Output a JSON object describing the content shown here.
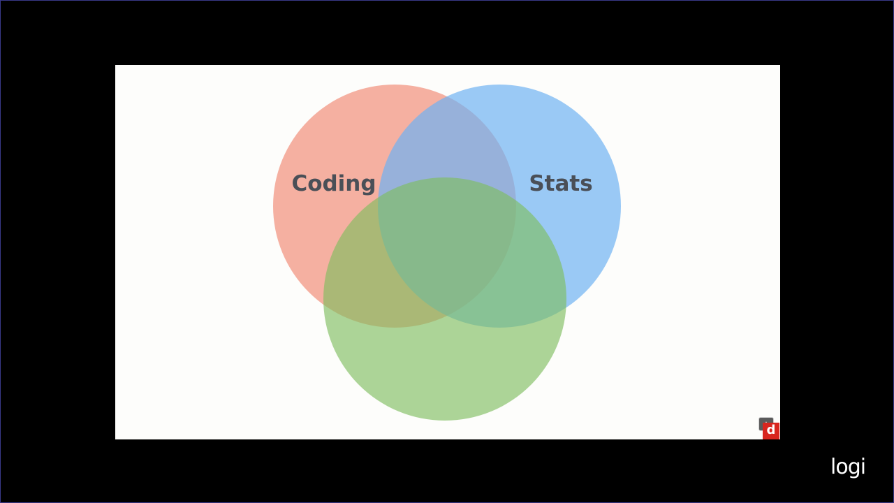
{
  "diagram": {
    "type": "venn",
    "sets": [
      {
        "label": "Coding",
        "color": "#f4a394"
      },
      {
        "label": "Stats",
        "color": "#8ec2f4"
      },
      {
        "label": "",
        "color": "#a6d08e"
      }
    ]
  },
  "watermark": {
    "badge_letter": "d",
    "badge_color": "#d8261f",
    "top_icon": "triangle-badge-icon"
  },
  "brand": {
    "logo_text": "logi"
  }
}
